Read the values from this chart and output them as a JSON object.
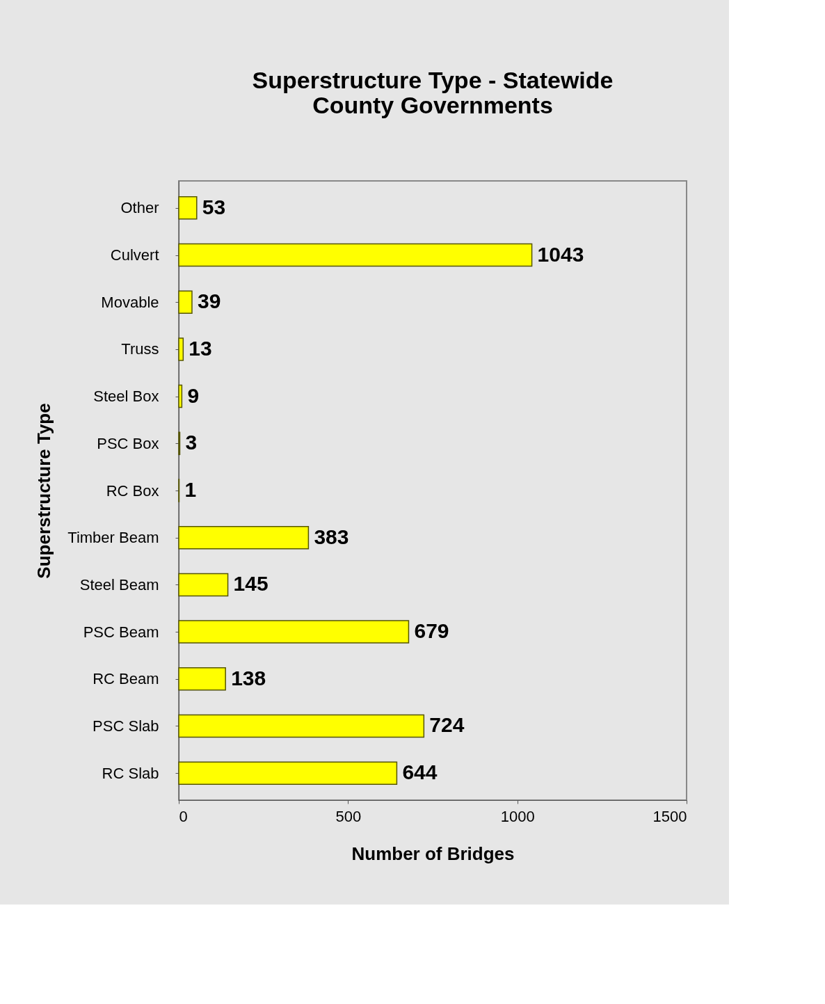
{
  "chart_data": {
    "type": "bar",
    "orientation": "horizontal",
    "title": "Superstructure Type - Statewide\nCounty Governments",
    "xlabel": "Number of Bridges",
    "ylabel": "Superstructure Type",
    "categories": [
      "Other",
      "Culvert",
      "Movable",
      "Truss",
      "Steel Box",
      "PSC Box",
      "RC Box",
      "Timber Beam",
      "Steel Beam",
      "PSC Beam",
      "RC Beam",
      "PSC Slab",
      "RC Slab"
    ],
    "values": [
      53,
      1043,
      39,
      13,
      9,
      3,
      1,
      383,
      145,
      679,
      138,
      724,
      644
    ],
    "color": "#ffff00",
    "data_labels": true,
    "xlim": [
      0,
      1500
    ],
    "xticks": [
      0,
      500,
      1000,
      1500
    ],
    "grid": false
  }
}
